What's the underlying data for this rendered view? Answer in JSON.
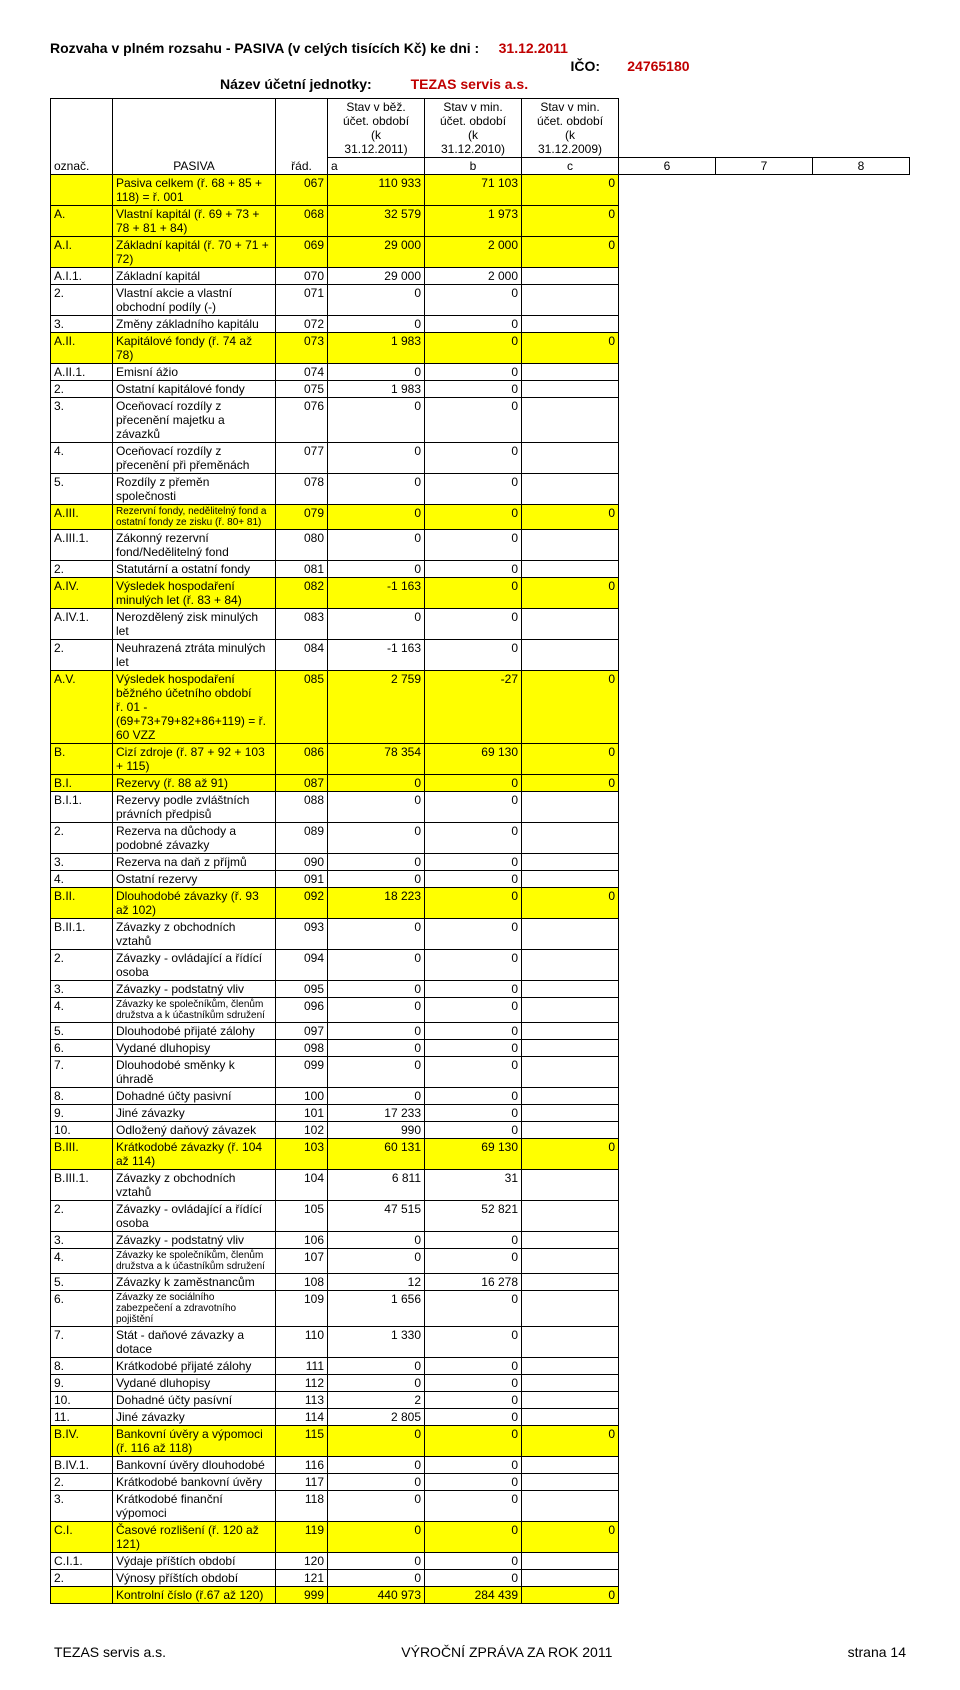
{
  "header": {
    "title_prefix": "Rozvaha v plném rozsahu - PASIVA (v celých tisících Kč) ke dni :",
    "title_date": "31.12.2011",
    "ico_label": "IČO:",
    "ico_value": "24765180",
    "name_label": "Název účetní jednotky:",
    "name_value": "TEZAS servis a.s."
  },
  "table_head": {
    "oznac": "označ.",
    "pasiva": "PASIVA",
    "rad": "řád.",
    "col6_1": "Stav v běž.",
    "col6_2": "účet. období",
    "col6_3": "(k",
    "col6_4": "31.12.2011)",
    "col7_1": "Stav v min.",
    "col7_2": "účet. období",
    "col7_3": "(k",
    "col7_4": "31.12.2010)",
    "col8_1": "Stav v min.",
    "col8_2": "účet. období",
    "col8_3": "(k",
    "col8_4": "31.12.2009)",
    "a": "a",
    "b": "b",
    "c": "c",
    "h6": "6",
    "h7": "7",
    "h8": "8"
  },
  "rows": [
    {
      "hl": true,
      "o": "",
      "p": "Pasiva celkem (ř. 68 + 85 + 118) = ř. 001",
      "r": "067",
      "v6": "110 933",
      "v7": "71 103",
      "v8": "0"
    },
    {
      "hl": true,
      "o": "A.",
      "p": "Vlastní kapitál (ř. 69 + 73 + 78 + 81 + 84)",
      "r": "068",
      "v6": "32 579",
      "v7": "1 973",
      "v8": "0"
    },
    {
      "hl": true,
      "o": "A.I.",
      "p": "Základní kapitál (ř. 70 + 71 + 72)",
      "r": "069",
      "v6": "29 000",
      "v7": "2 000",
      "v8": "0"
    },
    {
      "hl": false,
      "o": "A.I.1.",
      "p": "Základní kapitál",
      "r": "070",
      "v6": "29 000",
      "v7": "2 000",
      "v8": ""
    },
    {
      "hl": false,
      "o": "2.",
      "p": "Vlastní akcie a vlastní obchodní podíly (-)",
      "r": "071",
      "v6": "0",
      "v7": "0",
      "v8": ""
    },
    {
      "hl": false,
      "o": "3.",
      "p": "Změny základního kapitálu",
      "r": "072",
      "v6": "0",
      "v7": "0",
      "v8": ""
    },
    {
      "hl": true,
      "o": "A.II.",
      "p": "Kapitálové fondy (ř. 74 až 78)",
      "r": "073",
      "v6": "1 983",
      "v7": "0",
      "v8": "0"
    },
    {
      "hl": false,
      "o": "A.II.1.",
      "p": "Emisní ážio",
      "r": "074",
      "v6": "0",
      "v7": "0",
      "v8": ""
    },
    {
      "hl": false,
      "o": "2.",
      "p": "Ostatní kapitálové fondy",
      "r": "075",
      "v6": "1 983",
      "v7": "0",
      "v8": ""
    },
    {
      "hl": false,
      "o": "3.",
      "p": "Oceňovací rozdíly z přecenění majetku a závazků",
      "r": "076",
      "v6": "0",
      "v7": "0",
      "v8": ""
    },
    {
      "hl": false,
      "o": "4.",
      "p": "Oceňovací rozdíly z přecenění při přeměnách",
      "r": "077",
      "v6": "0",
      "v7": "0",
      "v8": ""
    },
    {
      "hl": false,
      "o": "5.",
      "p": "Rozdíly z přeměn společnosti",
      "r": "078",
      "v6": "0",
      "v7": "0",
      "v8": ""
    },
    {
      "hl": true,
      "o": "A.III.",
      "p": "Rezervní fondy, nedělitelný fond a ostatní fondy ze zisku (ř. 80+ 81)",
      "r": "079",
      "v6": "0",
      "v7": "0",
      "v8": "0",
      "small": true
    },
    {
      "hl": false,
      "o": "A.III.1.",
      "p": "Zákonný rezervní fond/Nedělitelný fond",
      "r": "080",
      "v6": "0",
      "v7": "0",
      "v8": ""
    },
    {
      "hl": false,
      "o": "2.",
      "p": "Statutární a ostatní fondy",
      "r": "081",
      "v6": "0",
      "v7": "0",
      "v8": ""
    },
    {
      "hl": true,
      "o": "A.IV.",
      "p": "Výsledek hospodaření minulých let (ř. 83 + 84)",
      "r": "082",
      "v6": "-1 163",
      "v7": "0",
      "v8": "0"
    },
    {
      "hl": false,
      "o": "A.IV.1.",
      "p": "Nerozdělený zisk minulých let",
      "r": "083",
      "v6": "0",
      "v7": "0",
      "v8": ""
    },
    {
      "hl": false,
      "o": "2.",
      "p": "Neuhrazená ztráta minulých let",
      "r": "084",
      "v6": "-1 163",
      "v7": "0",
      "v8": ""
    },
    {
      "hl": true,
      "o": "A.V.",
      "p": "Výsledek hospodaření běžného účetního období\nř. 01 - (69+73+79+82+86+119) = ř. 60 VZZ",
      "r": "085",
      "v6": "2 759",
      "v7": "-27",
      "v8": "0"
    },
    {
      "hl": true,
      "o": "B.",
      "p": "Cizí zdroje (ř. 87 + 92 + 103 + 115)",
      "r": "086",
      "v6": "78 354",
      "v7": "69 130",
      "v8": "0"
    },
    {
      "hl": true,
      "o": "B.I.",
      "p": "Rezervy (ř. 88 až 91)",
      "r": "087",
      "v6": "0",
      "v7": "0",
      "v8": "0"
    },
    {
      "hl": false,
      "o": "B.I.1.",
      "p": "Rezervy podle zvláštních právních předpisů",
      "r": "088",
      "v6": "0",
      "v7": "0",
      "v8": ""
    },
    {
      "hl": false,
      "o": "2.",
      "p": "Rezerva na důchody a podobné závazky",
      "r": "089",
      "v6": "0",
      "v7": "0",
      "v8": ""
    },
    {
      "hl": false,
      "o": "3.",
      "p": "Rezerva na daň z příjmů",
      "r": "090",
      "v6": "0",
      "v7": "0",
      "v8": ""
    },
    {
      "hl": false,
      "o": "4.",
      "p": "Ostatní rezervy",
      "r": "091",
      "v6": "0",
      "v7": "0",
      "v8": ""
    },
    {
      "hl": true,
      "o": "B.II.",
      "p": "Dlouhodobé závazky (ř. 93 až 102)",
      "r": "092",
      "v6": "18 223",
      "v7": "0",
      "v8": "0"
    },
    {
      "hl": false,
      "o": "B.II.1.",
      "p": "Závazky z obchodních vztahů",
      "r": "093",
      "v6": "0",
      "v7": "0",
      "v8": ""
    },
    {
      "hl": false,
      "o": "2.",
      "p": "Závazky - ovládající a řídící osoba",
      "r": "094",
      "v6": "0",
      "v7": "0",
      "v8": ""
    },
    {
      "hl": false,
      "o": "3.",
      "p": "Závazky - podstatný vliv",
      "r": "095",
      "v6": "0",
      "v7": "0",
      "v8": ""
    },
    {
      "hl": false,
      "o": "4.",
      "p": "Závazky ke společníkům, členům družstva a k účastníkům sdružení",
      "r": "096",
      "v6": "0",
      "v7": "0",
      "v8": "",
      "small": true
    },
    {
      "hl": false,
      "o": "5.",
      "p": "Dlouhodobé přijaté zálohy",
      "r": "097",
      "v6": "0",
      "v7": "0",
      "v8": ""
    },
    {
      "hl": false,
      "o": "6.",
      "p": "Vydané dluhopisy",
      "r": "098",
      "v6": "0",
      "v7": "0",
      "v8": ""
    },
    {
      "hl": false,
      "o": "7.",
      "p": "Dlouhodobé směnky k úhradě",
      "r": "099",
      "v6": "0",
      "v7": "0",
      "v8": ""
    },
    {
      "hl": false,
      "o": "8.",
      "p": "Dohadné účty pasivní",
      "r": "100",
      "v6": "0",
      "v7": "0",
      "v8": ""
    },
    {
      "hl": false,
      "o": "9.",
      "p": "Jiné závazky",
      "r": "101",
      "v6": "17 233",
      "v7": "0",
      "v8": ""
    },
    {
      "hl": false,
      "o": "10.",
      "p": "Odložený daňový závazek",
      "r": "102",
      "v6": "990",
      "v7": "0",
      "v8": ""
    },
    {
      "hl": true,
      "o": "B.III.",
      "p": "Krátkodobé závazky (ř. 104 až 114)",
      "r": "103",
      "v6": "60 131",
      "v7": "69 130",
      "v8": "0"
    },
    {
      "hl": false,
      "o": "B.III.1.",
      "p": "Závazky z obchodních vztahů",
      "r": "104",
      "v6": "6 811",
      "v7": "31",
      "v8": ""
    },
    {
      "hl": false,
      "o": "2.",
      "p": "Závazky - ovládající a řídící osoba",
      "r": "105",
      "v6": "47 515",
      "v7": "52 821",
      "v8": ""
    },
    {
      "hl": false,
      "o": "3.",
      "p": "Závazky - podstatný vliv",
      "r": "106",
      "v6": "0",
      "v7": "0",
      "v8": ""
    },
    {
      "hl": false,
      "o": "4.",
      "p": "Závazky ke společníkům, členům družstva a k účastníkům sdružení",
      "r": "107",
      "v6": "0",
      "v7": "0",
      "v8": "",
      "small": true
    },
    {
      "hl": false,
      "o": "5.",
      "p": "Závazky k zaměstnancům",
      "r": "108",
      "v6": "12",
      "v7": "16 278",
      "v8": ""
    },
    {
      "hl": false,
      "o": "6.",
      "p": "Závazky ze sociálního zabezpečení a zdravotního pojištění",
      "r": "109",
      "v6": "1 656",
      "v7": "0",
      "v8": "",
      "small": true
    },
    {
      "hl": false,
      "o": "7.",
      "p": "Stát - daňové závazky a dotace",
      "r": "110",
      "v6": "1 330",
      "v7": "0",
      "v8": ""
    },
    {
      "hl": false,
      "o": "8.",
      "p": "Krátkodobé přijaté zálohy",
      "r": "111",
      "v6": "0",
      "v7": "0",
      "v8": ""
    },
    {
      "hl": false,
      "o": "9.",
      "p": "Vydané dluhopisy",
      "r": "112",
      "v6": "0",
      "v7": "0",
      "v8": ""
    },
    {
      "hl": false,
      "o": "10.",
      "p": "Dohadné účty pasívní",
      "r": "113",
      "v6": "2",
      "v7": "0",
      "v8": ""
    },
    {
      "hl": false,
      "o": "11.",
      "p": "Jiné závazky",
      "r": "114",
      "v6": "2 805",
      "v7": "0",
      "v8": ""
    },
    {
      "hl": true,
      "o": "B.IV.",
      "p": "Bankovní úvěry a výpomoci  (ř. 116 až 118)",
      "r": "115",
      "v6": "0",
      "v7": "0",
      "v8": "0"
    },
    {
      "hl": false,
      "o": "B.IV.1.",
      "p": "Bankovní úvěry dlouhodobé",
      "r": "116",
      "v6": "0",
      "v7": "0",
      "v8": ""
    },
    {
      "hl": false,
      "o": "2.",
      "p": "Krátkodobé bankovní úvěry",
      "r": "117",
      "v6": "0",
      "v7": "0",
      "v8": ""
    },
    {
      "hl": false,
      "o": "3.",
      "p": "Krátkodobé finanční výpomoci",
      "r": "118",
      "v6": "0",
      "v7": "0",
      "v8": ""
    },
    {
      "hl": true,
      "o": "C.I.",
      "p": "Časové rozlišení (ř. 120 až 121)",
      "r": "119",
      "v6": "0",
      "v7": "0",
      "v8": "0"
    },
    {
      "hl": false,
      "o": "C.I.1.",
      "p": "Výdaje příštích období",
      "r": "120",
      "v6": "0",
      "v7": "0",
      "v8": ""
    },
    {
      "hl": false,
      "o": "2.",
      "p": "Výnosy příštích období",
      "r": "121",
      "v6": "0",
      "v7": "0",
      "v8": ""
    },
    {
      "hl": true,
      "o": "",
      "p": "Kontrolní číslo (ř.67 až 120)",
      "r": "999",
      "v6": "440 973",
      "v7": "284 439",
      "v8": "0"
    }
  ],
  "footer": {
    "left": "TEZAS servis a.s.",
    "center": "VÝROČNÍ ZPRÁVA ZA ROK 2011",
    "right": "strana 14"
  },
  "styles": {
    "highlight_bg": "#ffff00",
    "border_color": "#000000",
    "font_size_body": 12,
    "font_size_small": 10,
    "font_size_header": 14,
    "red_color": "#c00000"
  }
}
